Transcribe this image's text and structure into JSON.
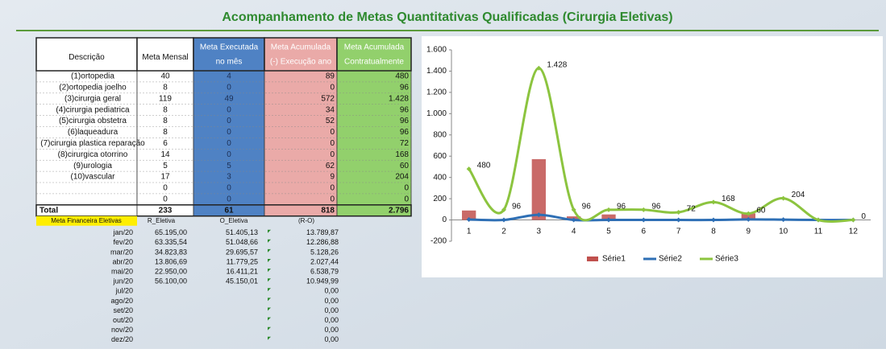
{
  "header": {
    "title": "Acompanhamento de Metas Quantitativas Qualificadas  (Cirurgia Eletivas)"
  },
  "table": {
    "columns": [
      [
        "Descrição"
      ],
      [
        "Meta Mensal"
      ],
      [
        "Meta Executada",
        "no mês"
      ],
      [
        "Meta Acumulada",
        "(-) Execução ano"
      ],
      [
        "Meta Acumulada",
        "Contratualmente"
      ]
    ],
    "rows": [
      [
        "(1)ortopedia",
        40,
        4,
        89,
        480
      ],
      [
        "(2)ortopedia joelho",
        8,
        0,
        0,
        96
      ],
      [
        "(3)cirurgia geral",
        119,
        49,
        572,
        "1.428"
      ],
      [
        "(4)cirurgia pediatrica",
        8,
        0,
        34,
        96
      ],
      [
        "(5)cirurgia obstetra",
        8,
        0,
        52,
        96
      ],
      [
        "(6)laqueadura",
        8,
        0,
        0,
        96
      ],
      [
        "(7)cirurgia plastica reparação",
        6,
        0,
        0,
        72
      ],
      [
        "(8)cirurgica otorrino",
        14,
        0,
        0,
        168
      ],
      [
        "(9)urologia",
        5,
        5,
        62,
        60
      ],
      [
        "(10)vascular",
        17,
        3,
        9,
        204
      ],
      [
        null,
        0,
        0,
        0,
        0
      ],
      [
        null,
        0,
        0,
        0,
        0
      ]
    ],
    "total": [
      "Total",
      233,
      61,
      818,
      "2.796"
    ]
  },
  "finance": {
    "label": "Meta Financeira Eletivas",
    "columns": [
      "R_Eletiva",
      "O_Eletiva",
      "(R-O)"
    ],
    "rows": [
      [
        "jan/20",
        "65.195,00",
        "51.405,13",
        "13.789,87"
      ],
      [
        "fev/20",
        "63.335,54",
        "51.048,66",
        "12.286,88"
      ],
      [
        "mar/20",
        "34.823,83",
        "29.695,57",
        "5.128,26"
      ],
      [
        "abr/20",
        "13.806,69",
        "11.779,25",
        "2.027,44"
      ],
      [
        "mai/20",
        "22.950,00",
        "16.411,21",
        "6.538,79"
      ],
      [
        "jun/20",
        "56.100,00",
        "45.150,01",
        "10.949,99"
      ],
      [
        "jul/20",
        null,
        null,
        "0,00"
      ],
      [
        "ago/20",
        null,
        null,
        "0,00"
      ],
      [
        "set/20",
        null,
        null,
        "0,00"
      ],
      [
        "out/20",
        null,
        null,
        "0,00"
      ],
      [
        "nov/20",
        null,
        null,
        "0,00"
      ],
      [
        "dez/20",
        null,
        null,
        "0,00"
      ]
    ]
  },
  "chart_data": {
    "type": "combo",
    "categories": [
      "1",
      "2",
      "3",
      "4",
      "5",
      "6",
      "7",
      "8",
      "9",
      "10",
      "11",
      "12"
    ],
    "series": [
      {
        "name": "Série1",
        "type": "bar",
        "color": "#c0504d",
        "values": [
          89,
          0,
          572,
          34,
          52,
          0,
          0,
          0,
          62,
          9,
          0,
          0
        ]
      },
      {
        "name": "Série2",
        "type": "line",
        "color": "#2e6fb5",
        "values": [
          4,
          0,
          49,
          0,
          0,
          0,
          0,
          0,
          5,
          3,
          0,
          0
        ]
      },
      {
        "name": "Série3",
        "type": "line",
        "color": "#8cc43f",
        "values": [
          480,
          96,
          1428,
          96,
          96,
          96,
          72,
          168,
          60,
          204,
          0,
          0
        ],
        "value_labels": [
          "480",
          "96",
          "1.428",
          "96",
          "96",
          "96",
          "72",
          "168",
          "60",
          "204",
          null,
          "0"
        ]
      }
    ],
    "ylim": [
      -200,
      1600
    ],
    "yticks": [
      -200,
      0,
      200,
      400,
      600,
      800,
      {
        "value": 1000,
        "label": "1.000"
      },
      {
        "value": 1200,
        "label": "1.200"
      },
      {
        "value": 1400,
        "label": "1.400"
      },
      {
        "value": 1600,
        "label": "1.600"
      }
    ],
    "legend": "bottom"
  }
}
